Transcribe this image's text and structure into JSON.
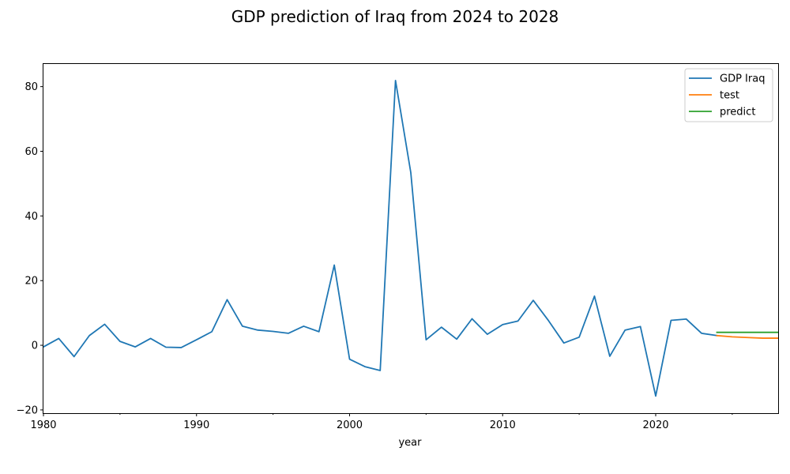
{
  "chart_data": {
    "type": "line",
    "title": "GDP prediction of Iraq from 2024 to 2028",
    "xlabel": "year",
    "ylabel": "",
    "xlim": [
      1980,
      2028
    ],
    "ylim": [
      -21,
      87
    ],
    "x_ticks": [
      1980,
      1990,
      2000,
      2010,
      2020
    ],
    "x_tick_labels": [
      "1980",
      "1990",
      "2000",
      "2010",
      "2020"
    ],
    "x_minor_ticks": [
      1985,
      1995,
      2005,
      2015,
      2025
    ],
    "y_ticks": [
      -20,
      0,
      20,
      40,
      60,
      80
    ],
    "y_tick_labels": [
      "−20",
      "0",
      "20",
      "40",
      "60",
      "80"
    ],
    "grid": false,
    "legend_position": "top-right",
    "series": [
      {
        "name": "GDP Iraq",
        "color": "#1f77b4",
        "x": [
          1980,
          1981,
          1982,
          1983,
          1984,
          1985,
          1986,
          1987,
          1988,
          1989,
          1990,
          1991,
          1992,
          1993,
          1994,
          1995,
          1996,
          1997,
          1998,
          1999,
          2000,
          2001,
          2002,
          2003,
          2004,
          2005,
          2006,
          2007,
          2008,
          2009,
          2010,
          2011,
          2012,
          2013,
          2014,
          2015,
          2016,
          2017,
          2018,
          2019,
          2020,
          2021,
          2022,
          2023,
          2024
        ],
        "values": [
          -0.5,
          2.1,
          -3.5,
          3.0,
          6.5,
          1.2,
          -0.5,
          2.1,
          -0.6,
          -0.7,
          1.7,
          4.2,
          14.1,
          5.9,
          4.7,
          4.3,
          3.7,
          5.9,
          4.2,
          24.8,
          -4.3,
          -6.6,
          -7.8,
          81.9,
          53.4,
          1.7,
          5.6,
          1.9,
          8.2,
          3.4,
          6.4,
          7.5,
          13.9,
          7.6,
          0.7,
          2.5,
          15.2,
          -3.4,
          4.7,
          5.8,
          -15.7,
          7.7,
          8.1,
          3.7,
          3.0
        ]
      },
      {
        "name": "test",
        "color": "#ff7f0e",
        "x": [
          2024,
          2025,
          2026,
          2027,
          2028
        ],
        "values": [
          3.0,
          2.6,
          2.4,
          2.2,
          2.2
        ]
      },
      {
        "name": "predict",
        "color": "#2ca02c",
        "x": [
          2024,
          2025,
          2026,
          2027,
          2028
        ],
        "values": [
          4.0,
          4.0,
          4.0,
          4.0,
          4.0
        ]
      }
    ]
  }
}
